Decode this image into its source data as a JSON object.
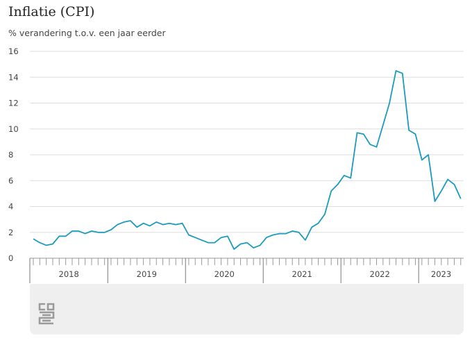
{
  "title": "Inflatie (CPI)",
  "subtitle": "% verandering t.o.v. een jaar eerder",
  "colors": {
    "line": "#1a9bbe",
    "grid": "#dddddd",
    "axis": "#555555",
    "footer": "#efefef",
    "logo": "#9a9a9a"
  },
  "logo_icon": "cbs-logo-icon",
  "chart_data": {
    "type": "line",
    "title": "Inflatie (CPI)",
    "ylabel": "% verandering t.o.v. een jaar eerder",
    "xlabel": "",
    "ylim": [
      0,
      16
    ],
    "yticks": [
      0,
      2,
      4,
      6,
      8,
      10,
      12,
      14,
      16
    ],
    "grid": true,
    "year_labels": [
      "2018",
      "2019",
      "2020",
      "2021",
      "2022",
      "2023"
    ],
    "x_start": "2018-01",
    "series": [
      {
        "values": [
          1.5,
          1.2,
          1.0,
          1.1,
          1.7,
          1.7,
          2.1,
          2.1,
          1.9,
          2.1,
          2.0,
          2.0,
          2.2,
          2.6,
          2.8,
          2.9,
          2.4,
          2.7,
          2.5,
          2.8,
          2.6,
          2.7,
          2.6,
          2.7,
          1.8,
          1.6,
          1.4,
          1.2,
          1.2,
          1.6,
          1.7,
          0.7,
          1.1,
          1.2,
          0.8,
          1.0,
          1.6,
          1.8,
          1.9,
          1.9,
          2.1,
          2.0,
          1.4,
          2.4,
          2.7,
          3.4,
          5.2,
          5.7,
          6.4,
          6.2,
          9.7,
          9.6,
          8.8,
          8.6,
          10.3,
          12.0,
          14.5,
          14.3,
          9.9,
          9.6,
          7.6,
          8.0,
          4.4,
          5.2,
          6.1,
          5.7,
          4.6
        ]
      }
    ]
  }
}
